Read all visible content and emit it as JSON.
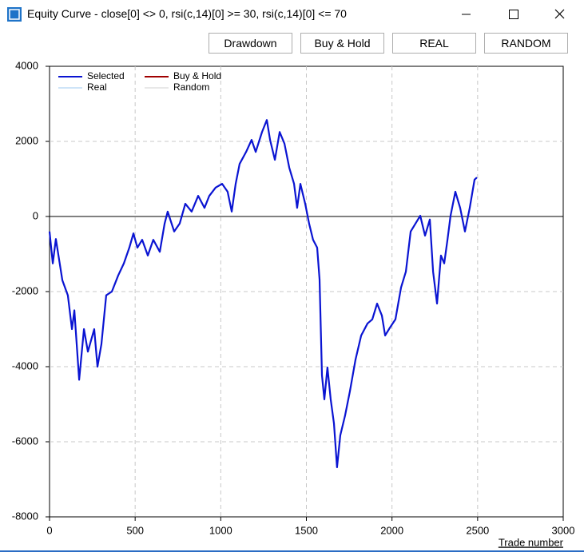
{
  "window": {
    "title": "Equity Curve - close[0] <> 0, rsi(c,14)[0] >= 30, rsi(c,14)[0] <= 70",
    "buttons": [
      "Drawdown",
      "Buy & Hold",
      "REAL",
      "RANDOM"
    ]
  },
  "chart_data": {
    "type": "line",
    "xlabel": "Trade number",
    "xlim": [
      0,
      3000
    ],
    "xticks": [
      0,
      500,
      1000,
      1500,
      2000,
      2500,
      3000
    ],
    "ylim": [
      -8000,
      4000
    ],
    "yticks": [
      -8000,
      -6000,
      -4000,
      -2000,
      0,
      2000,
      4000
    ],
    "grid": true,
    "legend": "upper left",
    "series": [
      {
        "name": "Selected",
        "color": "#0a14d2",
        "x": [
          0,
          19,
          37,
          75,
          107,
          131,
          145,
          173,
          201,
          224,
          261,
          280,
          303,
          331,
          364,
          401,
          434,
          466,
          490,
          513,
          541,
          574,
          606,
          644,
          672,
          690,
          728,
          760,
          793,
          830,
          868,
          905,
          933,
          970,
          1008,
          1040,
          1064,
          1087,
          1110,
          1148,
          1180,
          1204,
          1241,
          1269,
          1288,
          1316,
          1344,
          1372,
          1400,
          1428,
          1446,
          1465,
          1493,
          1516,
          1539,
          1563,
          1577,
          1591,
          1605,
          1623,
          1642,
          1661,
          1679,
          1698,
          1726,
          1754,
          1787,
          1820,
          1857,
          1885,
          1913,
          1941,
          1960,
          1988,
          2020,
          2053,
          2081,
          2109,
          2137,
          2165,
          2193,
          2221,
          2240,
          2263,
          2286,
          2305,
          2324,
          2342,
          2370,
          2398,
          2426,
          2454,
          2482,
          2496
        ],
        "values": [
          -400,
          -1250,
          -600,
          -1700,
          -2100,
          -3000,
          -2500,
          -4350,
          -3000,
          -3600,
          -3000,
          -4000,
          -3400,
          -2100,
          -2000,
          -1570,
          -1250,
          -830,
          -450,
          -830,
          -620,
          -1040,
          -620,
          -940,
          -190,
          130,
          -400,
          -190,
          340,
          130,
          550,
          230,
          550,
          770,
          870,
          660,
          130,
          870,
          1400,
          1720,
          2040,
          1720,
          2250,
          2570,
          2040,
          1510,
          2250,
          1940,
          1300,
          870,
          230,
          870,
          340,
          -190,
          -620,
          -830,
          -1680,
          -4230,
          -4870,
          -4020,
          -4870,
          -5510,
          -6680,
          -5830,
          -5300,
          -4660,
          -3810,
          -3170,
          -2850,
          -2740,
          -2320,
          -2640,
          -3170,
          -2960,
          -2740,
          -1890,
          -1470,
          -400,
          -190,
          20,
          -510,
          -80,
          -1470,
          -2320,
          -1040,
          -1250,
          -620,
          20,
          660,
          230,
          -400,
          230,
          980,
          1040
        ]
      },
      {
        "name": "Buy & Hold",
        "color": "#a00000",
        "x": [],
        "values": []
      },
      {
        "name": "Real",
        "color": "#9cc8f0",
        "x": [],
        "values": []
      },
      {
        "name": "Random",
        "color": "#d0d0d0",
        "x": [],
        "values": []
      }
    ]
  }
}
